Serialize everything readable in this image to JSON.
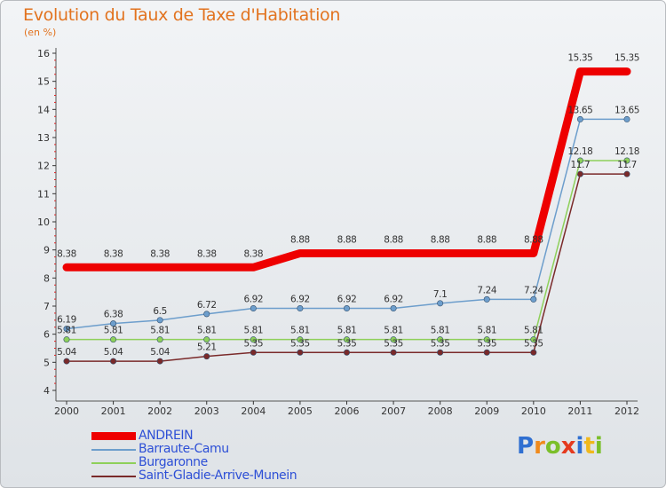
{
  "title": "Evolution du Taux de Taxe d'Habitation",
  "subtitle": "(en %)",
  "logo": {
    "letters": [
      "P",
      "r",
      "o",
      "x",
      "i",
      "t",
      "i"
    ],
    "colors": [
      "#2f6fd1",
      "#f08a1c",
      "#7bbf2a",
      "#e53a1e",
      "#2f6fd1",
      "#f0b81c",
      "#7bbf2a"
    ]
  },
  "chart_data": {
    "type": "line",
    "title": "Evolution du Taux de Taxe d'Habitation",
    "subtitle": "(en %)",
    "xlabel": "",
    "ylabel": "",
    "ylim": [
      4,
      16
    ],
    "yticks": [
      "4",
      "5",
      "6",
      "7",
      "8",
      "9",
      "10",
      "11",
      "12",
      "13",
      "14",
      "15",
      "16"
    ],
    "categories": [
      "2000",
      "2001",
      "2002",
      "2003",
      "2004",
      "2005",
      "2006",
      "2007",
      "2008",
      "2009",
      "2010",
      "2011",
      "2012"
    ],
    "grid": false,
    "legend_position": "bottom-left",
    "series": [
      {
        "name": "ANDREIN",
        "color": "#ee0000",
        "values": [
          8.38,
          8.38,
          8.38,
          8.38,
          8.38,
          8.88,
          8.88,
          8.88,
          8.88,
          8.88,
          8.88,
          15.35,
          15.35
        ],
        "labels": [
          "8.38",
          "8.38",
          "8.38",
          "8.38",
          "8.38",
          "8.88",
          "8.88",
          "8.88",
          "8.88",
          "8.88",
          "8.88",
          "15.35",
          "15.35"
        ]
      },
      {
        "name": "Barraute-Camu",
        "color": "#6d9ecc",
        "values": [
          6.19,
          6.38,
          6.5,
          6.72,
          6.92,
          6.92,
          6.92,
          6.92,
          7.1,
          7.24,
          7.24,
          13.65,
          13.65
        ],
        "labels": [
          "6.19",
          "6.38",
          "6.5",
          "6.72",
          "6.92",
          "6.92",
          "6.92",
          "6.92",
          "7.1",
          "7.24",
          "7.24",
          "13.65",
          "13.65"
        ]
      },
      {
        "name": "Burgaronne",
        "color": "#8ed05a",
        "values": [
          5.81,
          5.81,
          5.81,
          5.81,
          5.81,
          5.81,
          5.81,
          5.81,
          5.81,
          5.81,
          5.81,
          12.18,
          12.18
        ],
        "labels": [
          "5.81",
          "5.81",
          "5.81",
          "5.81",
          "5.81",
          "5.81",
          "5.81",
          "5.81",
          "5.81",
          "5.81",
          "5.81",
          "12.18",
          "12.18"
        ]
      },
      {
        "name": "Saint-Gladie-Arrive-Munein",
        "color": "#7a2a2a",
        "values": [
          5.04,
          5.04,
          5.04,
          5.21,
          5.35,
          5.35,
          5.35,
          5.35,
          5.35,
          5.35,
          5.35,
          11.7,
          11.7
        ],
        "labels": [
          "5.04",
          "5.04",
          "5.04",
          "5.21",
          "5.35",
          "5.35",
          "5.35",
          "5.35",
          "5.35",
          "5.35",
          "5.35",
          "11.7",
          "11.7"
        ]
      }
    ]
  }
}
